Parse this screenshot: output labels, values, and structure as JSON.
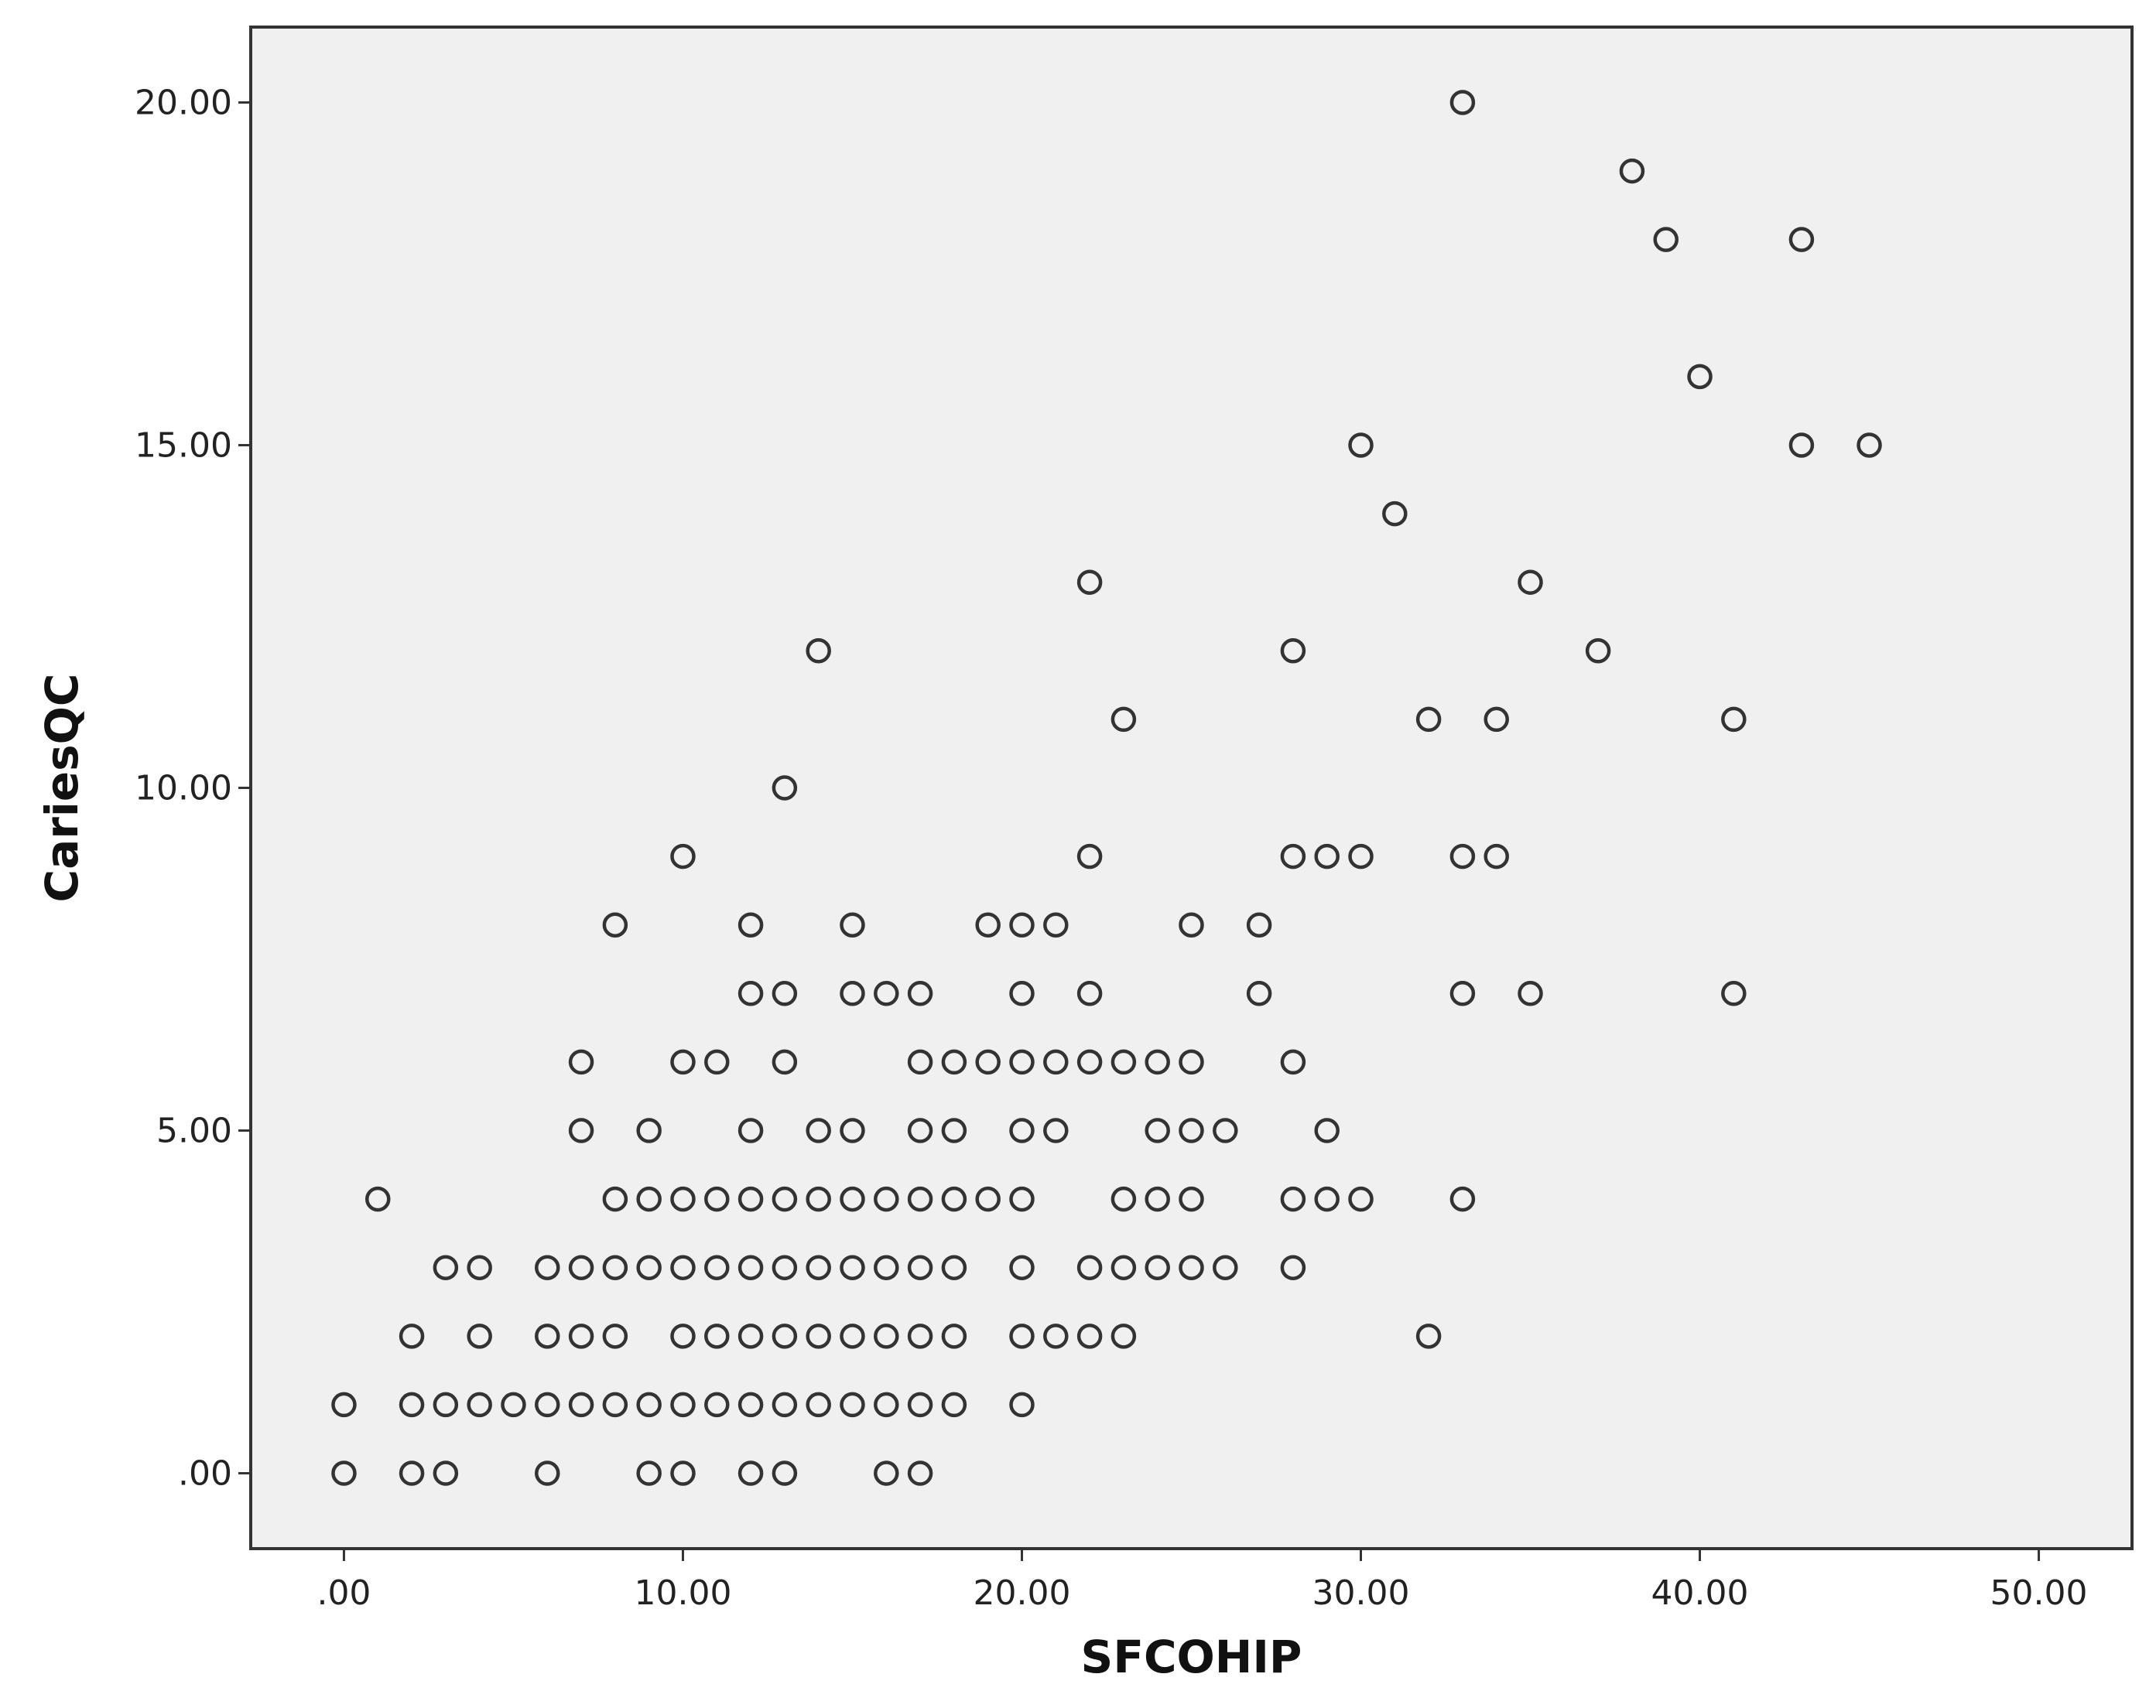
{
  "chart_data": {
    "type": "scatter",
    "title": "",
    "xlabel": "SFCOHIP",
    "ylabel": "CariesQC",
    "xlim": [
      -2.75,
      52.75
    ],
    "ylim": [
      -1.1,
      21.1
    ],
    "xticks": [
      0,
      10,
      20,
      30,
      40,
      50
    ],
    "yticks": [
      0,
      5,
      10,
      15,
      20
    ],
    "xtick_labels": [
      ".00",
      "10.00",
      "20.00",
      "30.00",
      "40.00",
      "50.00"
    ],
    "ytick_labels": [
      ".00",
      "5.00",
      "10.00",
      "15.00",
      "20.00"
    ],
    "grid": false,
    "legend": "none",
    "plot_background": "#f0f0f0",
    "marker_color": "#333333",
    "marker": "open-circle",
    "points": [
      [
        0,
        0
      ],
      [
        2,
        0
      ],
      [
        3,
        0
      ],
      [
        6,
        0
      ],
      [
        9,
        0
      ],
      [
        10,
        0
      ],
      [
        12,
        0
      ],
      [
        13,
        0
      ],
      [
        16,
        0
      ],
      [
        17,
        0
      ],
      [
        0,
        1
      ],
      [
        2,
        1
      ],
      [
        3,
        1
      ],
      [
        4,
        1
      ],
      [
        5,
        1
      ],
      [
        6,
        1
      ],
      [
        7,
        1
      ],
      [
        8,
        1
      ],
      [
        9,
        1
      ],
      [
        10,
        1
      ],
      [
        11,
        1
      ],
      [
        12,
        1
      ],
      [
        13,
        1
      ],
      [
        14,
        1
      ],
      [
        15,
        1
      ],
      [
        16,
        1
      ],
      [
        17,
        1
      ],
      [
        18,
        1
      ],
      [
        20,
        1
      ],
      [
        2,
        2
      ],
      [
        4,
        2
      ],
      [
        6,
        2
      ],
      [
        7,
        2
      ],
      [
        8,
        2
      ],
      [
        10,
        2
      ],
      [
        11,
        2
      ],
      [
        12,
        2
      ],
      [
        13,
        2
      ],
      [
        14,
        2
      ],
      [
        15,
        2
      ],
      [
        16,
        2
      ],
      [
        17,
        2
      ],
      [
        18,
        2
      ],
      [
        20,
        2
      ],
      [
        21,
        2
      ],
      [
        22,
        2
      ],
      [
        23,
        2
      ],
      [
        32,
        2
      ],
      [
        3,
        3
      ],
      [
        4,
        3
      ],
      [
        6,
        3
      ],
      [
        7,
        3
      ],
      [
        8,
        3
      ],
      [
        9,
        3
      ],
      [
        10,
        3
      ],
      [
        11,
        3
      ],
      [
        12,
        3
      ],
      [
        13,
        3
      ],
      [
        14,
        3
      ],
      [
        15,
        3
      ],
      [
        16,
        3
      ],
      [
        17,
        3
      ],
      [
        18,
        3
      ],
      [
        20,
        3
      ],
      [
        22,
        3
      ],
      [
        23,
        3
      ],
      [
        24,
        3
      ],
      [
        25,
        3
      ],
      [
        26,
        3
      ],
      [
        28,
        3
      ],
      [
        1,
        4
      ],
      [
        8,
        4
      ],
      [
        9,
        4
      ],
      [
        10,
        4
      ],
      [
        11,
        4
      ],
      [
        12,
        4
      ],
      [
        13,
        4
      ],
      [
        14,
        4
      ],
      [
        15,
        4
      ],
      [
        16,
        4
      ],
      [
        17,
        4
      ],
      [
        18,
        4
      ],
      [
        19,
        4
      ],
      [
        20,
        4
      ],
      [
        23,
        4
      ],
      [
        24,
        4
      ],
      [
        25,
        4
      ],
      [
        28,
        4
      ],
      [
        29,
        4
      ],
      [
        30,
        4
      ],
      [
        33,
        4
      ],
      [
        7,
        5
      ],
      [
        9,
        5
      ],
      [
        12,
        5
      ],
      [
        14,
        5
      ],
      [
        15,
        5
      ],
      [
        17,
        5
      ],
      [
        18,
        5
      ],
      [
        20,
        5
      ],
      [
        21,
        5
      ],
      [
        24,
        5
      ],
      [
        25,
        5
      ],
      [
        26,
        5
      ],
      [
        29,
        5
      ],
      [
        7,
        6
      ],
      [
        10,
        6
      ],
      [
        11,
        6
      ],
      [
        13,
        6
      ],
      [
        17,
        6
      ],
      [
        18,
        6
      ],
      [
        19,
        6
      ],
      [
        20,
        6
      ],
      [
        21,
        6
      ],
      [
        22,
        6
      ],
      [
        23,
        6
      ],
      [
        24,
        6
      ],
      [
        25,
        6
      ],
      [
        28,
        6
      ],
      [
        12,
        7
      ],
      [
        13,
        7
      ],
      [
        15,
        7
      ],
      [
        16,
        7
      ],
      [
        17,
        7
      ],
      [
        20,
        7
      ],
      [
        22,
        7
      ],
      [
        27,
        7
      ],
      [
        33,
        7
      ],
      [
        35,
        7
      ],
      [
        41,
        7
      ],
      [
        8,
        8
      ],
      [
        12,
        8
      ],
      [
        15,
        8
      ],
      [
        19,
        8
      ],
      [
        20,
        8
      ],
      [
        21,
        8
      ],
      [
        25,
        8
      ],
      [
        27,
        8
      ],
      [
        10,
        9
      ],
      [
        22,
        9
      ],
      [
        28,
        9
      ],
      [
        29,
        9
      ],
      [
        30,
        9
      ],
      [
        33,
        9
      ],
      [
        34,
        9
      ],
      [
        13,
        10
      ],
      [
        23,
        11
      ],
      [
        32,
        11
      ],
      [
        34,
        11
      ],
      [
        41,
        11
      ],
      [
        14,
        12
      ],
      [
        28,
        12
      ],
      [
        37,
        12
      ],
      [
        22,
        13
      ],
      [
        35,
        13
      ],
      [
        31,
        14
      ],
      [
        30,
        15
      ],
      [
        43,
        15
      ],
      [
        45,
        15
      ],
      [
        40,
        16
      ],
      [
        39,
        18
      ],
      [
        43,
        18
      ],
      [
        38,
        19
      ],
      [
        33,
        20
      ]
    ]
  }
}
